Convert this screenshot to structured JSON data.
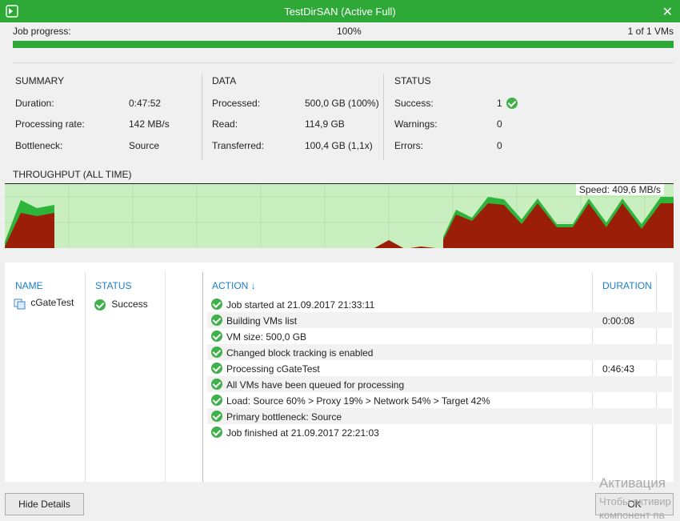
{
  "window": {
    "title": "TestDirSAN (Active Full)"
  },
  "progress": {
    "label": "Job progress:",
    "percent_text": "100%",
    "fraction": 1.0,
    "count_text": "1 of 1 VMs"
  },
  "summary": {
    "heading": "SUMMARY",
    "rows": [
      {
        "label": "Duration:",
        "value": "0:47:52"
      },
      {
        "label": "Processing rate:",
        "value": "142 MB/s"
      },
      {
        "label": "Bottleneck:",
        "value": "Source"
      }
    ]
  },
  "data": {
    "heading": "DATA",
    "rows": [
      {
        "label": "Processed:",
        "value": "500,0 GB (100%)"
      },
      {
        "label": "Read:",
        "value": "114,9 GB"
      },
      {
        "label": "Transferred:",
        "value": "100,4 GB (1,1x)"
      }
    ]
  },
  "status": {
    "heading": "STATUS",
    "rows": [
      {
        "label": "Success:",
        "value": "1"
      },
      {
        "label": "Warnings:",
        "value": "0"
      },
      {
        "label": "Errors:",
        "value": "0"
      }
    ]
  },
  "throughput": {
    "heading": "THROUGHPUT (ALL TIME)",
    "speed": "Speed: 409,6 MB/s"
  },
  "details": {
    "columns": {
      "name": "NAME",
      "status": "STATUS",
      "action": "ACTION",
      "duration": "DURATION"
    },
    "vm": {
      "name": "cGateTest",
      "status": "Success"
    },
    "actions": [
      {
        "text": "Job started at 21.09.2017 21:33:11",
        "duration": ""
      },
      {
        "text": "Building VMs list",
        "duration": "0:00:08"
      },
      {
        "text": "VM size: 500,0 GB",
        "duration": ""
      },
      {
        "text": "Changed block tracking is enabled",
        "duration": ""
      },
      {
        "text": "Processing cGateTest",
        "duration": "0:46:43"
      },
      {
        "text": "All VMs have been queued for processing",
        "duration": ""
      },
      {
        "text": "Load: Source 60% > Proxy 19% > Network 54% > Target 42%",
        "duration": ""
      },
      {
        "text": "Primary bottleneck: Source",
        "duration": ""
      },
      {
        "text": "Job finished at 21.09.2017 22:21:03",
        "duration": ""
      }
    ]
  },
  "buttons": {
    "hide_details": "Hide Details",
    "ok": "OK"
  },
  "watermark": {
    "line1": "Активация",
    "line2": "Чтобы активир",
    "line3": "компонент па"
  },
  "colors": {
    "accent": "#2ea836",
    "link": "#1c7fc4",
    "chart_bg": "#c9efc0",
    "chart_processing": "#2fb43b",
    "chart_read": "#9b1f08"
  }
}
